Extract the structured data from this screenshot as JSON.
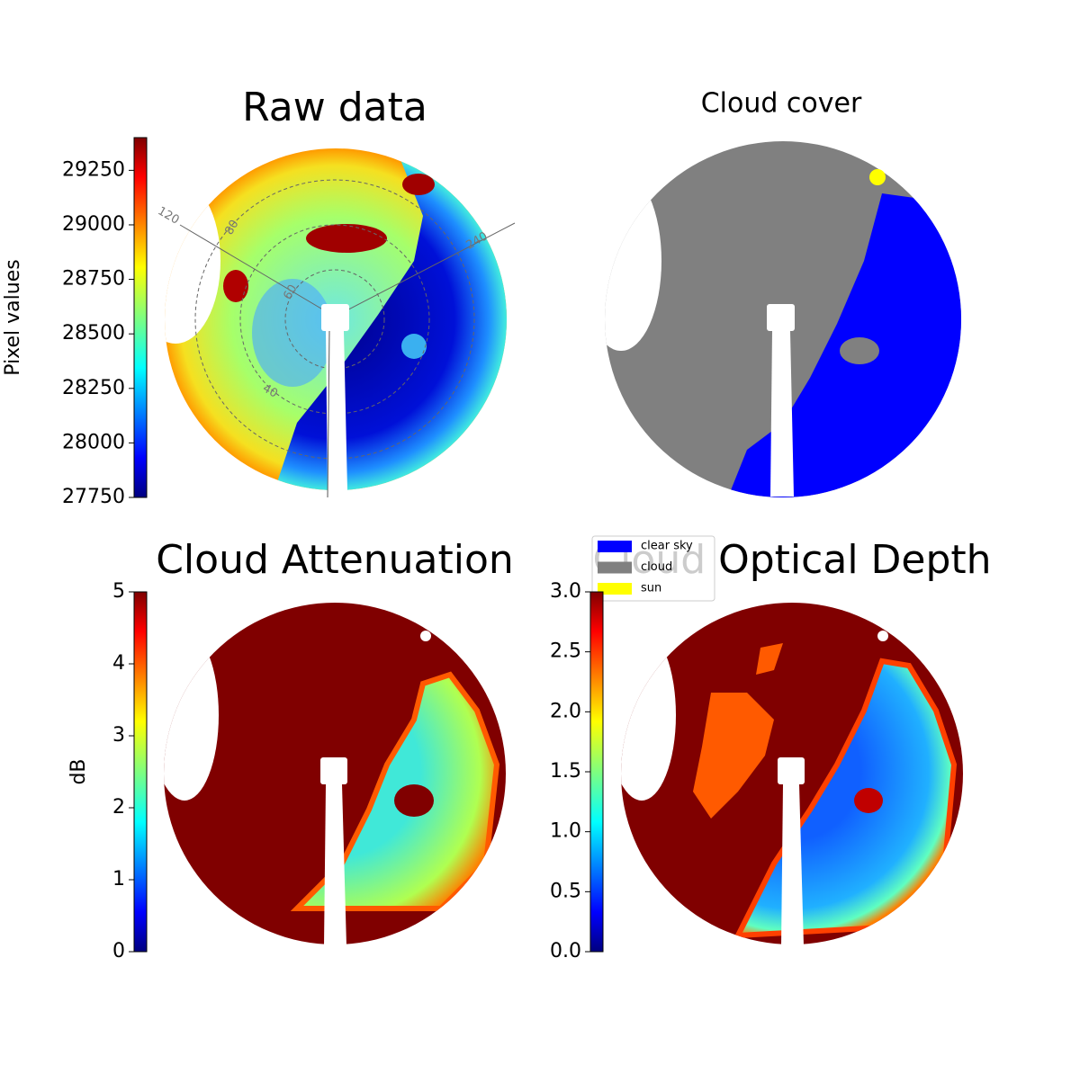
{
  "chart_data": [
    {
      "type": "image",
      "title": "Raw data",
      "colorbar": {
        "label": "Pixel values",
        "lim": [
          27750,
          29400
        ],
        "ticks": [
          27750,
          28000,
          28250,
          28500,
          28750,
          29000,
          29250
        ]
      },
      "annotations": [
        "120",
        "240",
        "80",
        "60",
        "40"
      ]
    },
    {
      "type": "image",
      "title": "Cloud cover",
      "series": [
        {
          "name": "clear sky",
          "color": "#0000ff"
        },
        {
          "name": "cloud",
          "color": "#808080"
        },
        {
          "name": "sun",
          "color": "#ffff00"
        }
      ]
    },
    {
      "type": "image",
      "title": "Cloud Attenuation",
      "colorbar": {
        "label": "dB",
        "lim": [
          0,
          5
        ],
        "ticks": [
          0,
          1,
          2,
          3,
          4,
          5
        ]
      }
    },
    {
      "type": "image",
      "title": "Cloud Optical Depth",
      "colorbar": {
        "lim": [
          0,
          3
        ],
        "ticks": [
          {
            "value": 0,
            "label": "0.0"
          },
          {
            "value": 0.5,
            "label": "0.5"
          },
          {
            "value": 1,
            "label": "1.0"
          },
          {
            "value": 1.5,
            "label": "1.5"
          },
          {
            "value": 2,
            "label": "2.0"
          },
          {
            "value": 2.5,
            "label": "2.5"
          },
          {
            "value": 3,
            "label": "3.0"
          }
        ]
      }
    }
  ]
}
